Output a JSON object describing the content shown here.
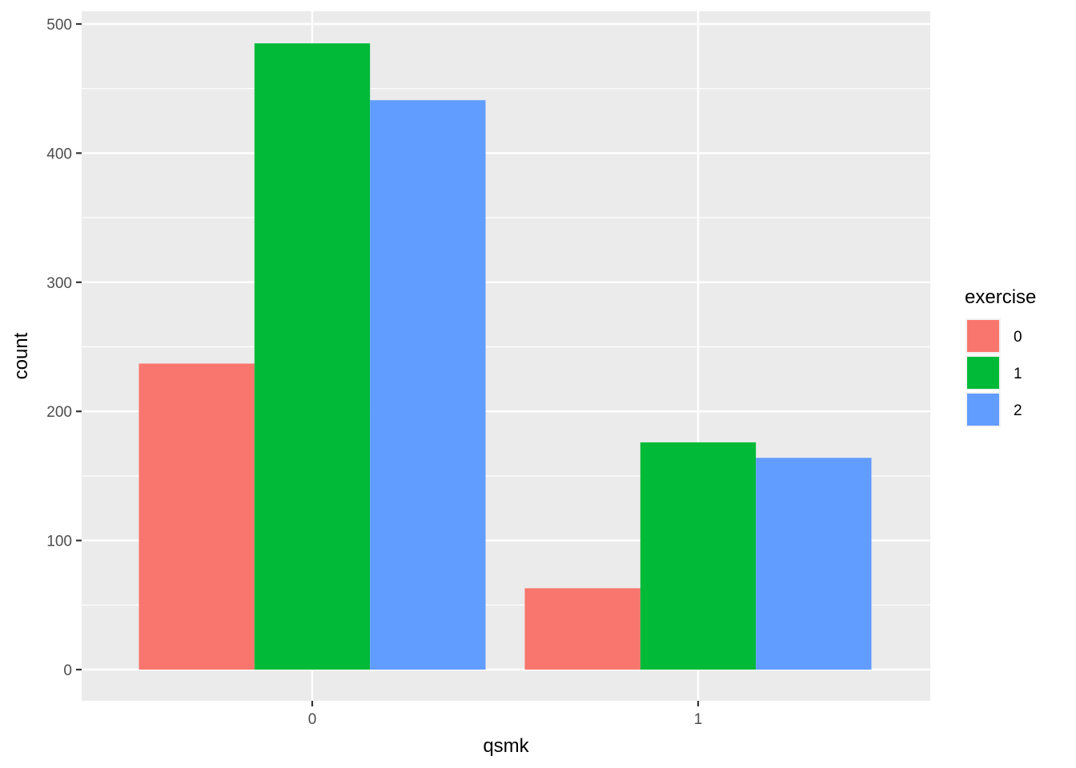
{
  "chart_data": {
    "type": "bar",
    "title": "",
    "xlabel": "qsmk",
    "ylabel": "count",
    "categories": [
      "0",
      "1"
    ],
    "series": [
      {
        "name": "0",
        "values": [
          237,
          63
        ],
        "color": "#F8766D"
      },
      {
        "name": "1",
        "values": [
          485,
          176
        ],
        "color": "#00BA38"
      },
      {
        "name": "2",
        "values": [
          441,
          164
        ],
        "color": "#619CFF"
      }
    ],
    "ylim": [
      0,
      500
    ],
    "yticks": [
      "0",
      "100",
      "200",
      "300",
      "400",
      "500"
    ],
    "grid": true,
    "legend": {
      "title": "exercise",
      "position": "right"
    },
    "panel_color": "#EBEBEB"
  }
}
